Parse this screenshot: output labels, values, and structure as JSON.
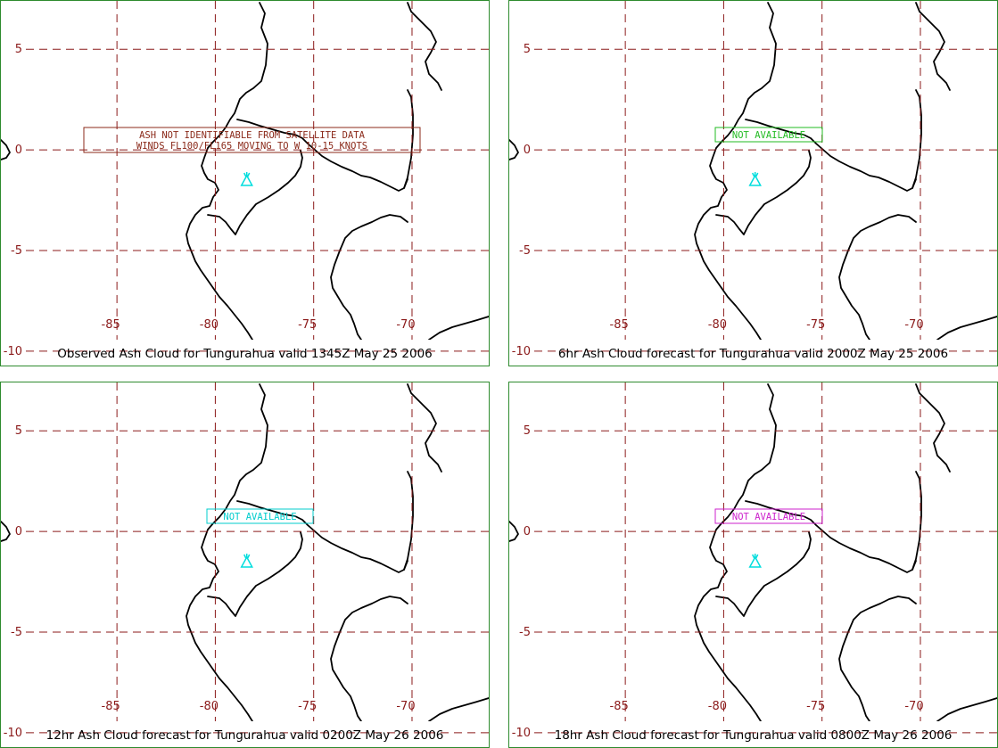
{
  "colors": {
    "panel_border": "#2e8b2e",
    "grid": "#8b1a1a",
    "coastline": "#000000",
    "volcano_symbol": "#00dddd"
  },
  "axes": {
    "lon_ticks": [
      -85,
      -80,
      -75,
      -70
    ],
    "lat_ticks": [
      5,
      0,
      -5,
      -10
    ],
    "lon_range": [
      -90.9,
      -66.1
    ],
    "lat_range": [
      7.4,
      -10.8
    ]
  },
  "volcano": {
    "name": "Tungurahua",
    "lon": -78.4,
    "lat": -1.5,
    "icon": "volcano-icon"
  },
  "panels": [
    {
      "id": "observed",
      "caption": "Observed Ash Cloud for Tungurahua valid 1345Z May 25 2006",
      "annotation_color": "#8b2a1a",
      "annotation_lines": [
        "ASH NOT IDENTIFIABLE FROM SATELLITE DATA",
        "WINDS FL100/FL165 MOVING TO W 10-15 KNOTS"
      ]
    },
    {
      "id": "fc6",
      "caption": "6hr Ash Cloud forecast for Tungurahua valid 2000Z May 25 2006",
      "annotation_color": "#22bb22",
      "annotation_lines": [
        "NOT AVAILABLE"
      ]
    },
    {
      "id": "fc12",
      "caption": "12hr Ash Cloud forecast for Tungurahua valid 0200Z May 26 2006",
      "annotation_color": "#00cccc",
      "annotation_lines": [
        "NOT AVAILABLE"
      ]
    },
    {
      "id": "fc18",
      "caption": "18hr Ash Cloud forecast for Tungurahua valid 0800Z May 26 2006",
      "annotation_color": "#cc22cc",
      "annotation_lines": [
        "NOT AVAILABLE"
      ]
    }
  ]
}
